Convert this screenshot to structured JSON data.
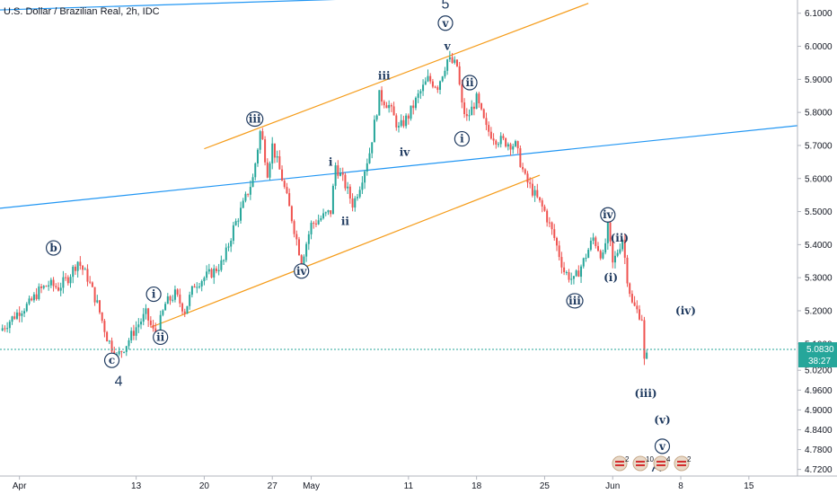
{
  "chart_data": {
    "type": "candlestick",
    "title": "U.S. Dollar / Brazilian Real, 2h, IDC",
    "x_tick_labels": [
      "Apr",
      "13",
      "20",
      "27",
      "May",
      "11",
      "18",
      "25",
      "Jun",
      "8",
      "15"
    ],
    "x_tick_days": [
      0,
      12,
      19,
      26,
      30,
      40,
      47,
      54,
      61,
      68,
      75
    ],
    "y_ticks": [
      4.72,
      4.78,
      4.84,
      4.9,
      4.96,
      5.02,
      5.1,
      5.2,
      5.3,
      5.4,
      5.5,
      5.6,
      5.7,
      5.8,
      5.9,
      6.0,
      6.1
    ],
    "y_tick_labels": [
      "4.7200",
      "4.7800",
      "4.8400",
      "4.9000",
      "4.9600",
      "5.0200",
      "5.1000",
      "5.2000",
      "5.3000",
      "5.4000",
      "5.5000",
      "5.6000",
      "5.7000",
      "5.8000",
      "5.9000",
      "6.0000",
      "6.1000"
    ],
    "y_range": [
      4.7,
      6.14
    ],
    "x_range_days": [
      -2,
      80
    ],
    "last_price": "5.0830",
    "last_price_value": 5.083,
    "countdown": "38:27",
    "colors": {
      "up": "#26a69a",
      "down": "#ef5350",
      "trend_blue": "#2196f3",
      "channel_orange": "#f59c1a",
      "label": "#1f3a5f",
      "price_line": "#26a69a"
    },
    "price_path": [
      [
        -2.0,
        5.14
      ],
      [
        -1.0,
        5.17
      ],
      [
        0.0,
        5.2
      ],
      [
        1.0,
        5.22
      ],
      [
        2.0,
        5.26
      ],
      [
        3.0,
        5.28
      ],
      [
        4.0,
        5.27
      ],
      [
        5.0,
        5.3
      ],
      [
        6.0,
        5.35
      ],
      [
        7.0,
        5.3
      ],
      [
        8.0,
        5.22
      ],
      [
        9.0,
        5.12
      ],
      [
        10.0,
        5.06
      ],
      [
        11.0,
        5.1
      ],
      [
        12.0,
        5.15
      ],
      [
        13.0,
        5.19
      ],
      [
        14.0,
        5.12
      ],
      [
        15.0,
        5.22
      ],
      [
        16.0,
        5.25
      ],
      [
        17.0,
        5.2
      ],
      [
        18.0,
        5.28
      ],
      [
        19.0,
        5.3
      ],
      [
        20.0,
        5.32
      ],
      [
        21.0,
        5.35
      ],
      [
        22.0,
        5.45
      ],
      [
        23.0,
        5.52
      ],
      [
        24.0,
        5.6
      ],
      [
        24.8,
        5.75
      ],
      [
        25.5,
        5.62
      ],
      [
        26.0,
        5.7
      ],
      [
        27.0,
        5.6
      ],
      [
        28.0,
        5.48
      ],
      [
        29.0,
        5.35
      ],
      [
        30.0,
        5.46
      ],
      [
        31.0,
        5.48
      ],
      [
        32.0,
        5.5
      ],
      [
        32.5,
        5.64
      ],
      [
        33.5,
        5.58
      ],
      [
        34.3,
        5.52
      ],
      [
        35.0,
        5.58
      ],
      [
        36.0,
        5.68
      ],
      [
        37.0,
        5.85
      ],
      [
        38.0,
        5.82
      ],
      [
        39.0,
        5.75
      ],
      [
        40.0,
        5.79
      ],
      [
        41.0,
        5.85
      ],
      [
        42.0,
        5.9
      ],
      [
        43.0,
        5.88
      ],
      [
        44.0,
        5.96
      ],
      [
        45.0,
        5.94
      ],
      [
        45.5,
        5.82
      ],
      [
        46.0,
        5.78
      ],
      [
        47.0,
        5.84
      ],
      [
        48.0,
        5.75
      ],
      [
        49.0,
        5.72
      ],
      [
        50.0,
        5.71
      ],
      [
        51.0,
        5.7
      ],
      [
        52.0,
        5.6
      ],
      [
        53.0,
        5.55
      ],
      [
        54.0,
        5.5
      ],
      [
        55.0,
        5.42
      ],
      [
        56.0,
        5.32
      ],
      [
        57.0,
        5.29
      ],
      [
        58.0,
        5.35
      ],
      [
        59.0,
        5.42
      ],
      [
        60.0,
        5.36
      ],
      [
        60.5,
        5.45
      ],
      [
        61.0,
        5.34
      ],
      [
        62.0,
        5.42
      ],
      [
        62.5,
        5.3
      ],
      [
        63.0,
        5.22
      ],
      [
        64.0,
        5.18
      ],
      [
        64.3,
        5.02
      ],
      [
        64.6,
        5.08
      ]
    ],
    "trendlines": [
      {
        "name": "blue-upper",
        "color": "#2196f3",
        "p1": [
          -2,
          6.11
        ],
        "p2": [
          63.5,
          6.17
        ]
      },
      {
        "name": "blue-lower",
        "color": "#2196f3",
        "p1": [
          -2,
          5.51
        ],
        "p2": [
          80,
          5.76
        ]
      },
      {
        "name": "orange-upper",
        "color": "#f59c1a",
        "p1": [
          19,
          5.69
        ],
        "p2": [
          58.5,
          6.13
        ]
      },
      {
        "name": "orange-lower",
        "color": "#f59c1a",
        "p1": [
          13.5,
          5.15
        ],
        "p2": [
          53.5,
          5.61
        ]
      }
    ],
    "wave_labels": [
      {
        "text": "b",
        "x": 3.5,
        "y": 5.39,
        "circled": true
      },
      {
        "text": "c",
        "x": 9.5,
        "y": 5.05,
        "circled": true
      },
      {
        "text": "4",
        "x": 10.2,
        "y": 4.99,
        "circled": false,
        "big": true
      },
      {
        "text": "i",
        "x": 13.8,
        "y": 5.25,
        "circled": true
      },
      {
        "text": "ii",
        "x": 14.5,
        "y": 5.12,
        "circled": true
      },
      {
        "text": "iii",
        "x": 24.2,
        "y": 5.78,
        "circled": true
      },
      {
        "text": "iv",
        "x": 29.0,
        "y": 5.32,
        "circled": true
      },
      {
        "text": "i",
        "x": 32.0,
        "y": 5.65,
        "circled": false
      },
      {
        "text": "ii",
        "x": 33.5,
        "y": 5.47,
        "circled": false
      },
      {
        "text": "iii",
        "x": 37.5,
        "y": 5.91,
        "circled": false
      },
      {
        "text": "iv",
        "x": 39.6,
        "y": 5.68,
        "circled": false
      },
      {
        "text": "5",
        "x": 43.8,
        "y": 6.13,
        "circled": false,
        "big": true
      },
      {
        "text": "v",
        "x": 43.8,
        "y": 6.07,
        "circled": true
      },
      {
        "text": "v",
        "x": 44.0,
        "y": 6.0,
        "circled": false
      },
      {
        "text": "ii",
        "x": 46.3,
        "y": 5.89,
        "circled": true
      },
      {
        "text": "i",
        "x": 45.5,
        "y": 5.72,
        "circled": true
      },
      {
        "text": "iii",
        "x": 57.1,
        "y": 5.23,
        "circled": true
      },
      {
        "text": "iv",
        "x": 60.5,
        "y": 5.49,
        "circled": true
      },
      {
        "text": "(ii)",
        "x": 61.7,
        "y": 5.42,
        "circled": false
      },
      {
        "text": "(i)",
        "x": 60.8,
        "y": 5.3,
        "circled": false
      },
      {
        "text": "(iv)",
        "x": 68.5,
        "y": 5.2,
        "circled": false
      },
      {
        "text": "(iii)",
        "x": 64.4,
        "y": 4.95,
        "circled": false
      },
      {
        "text": "(v)",
        "x": 66.1,
        "y": 4.87,
        "circled": false
      },
      {
        "text": "v",
        "x": 66.1,
        "y": 4.79,
        "circled": true
      },
      {
        "text": "A",
        "x": 65.5,
        "y": 4.73,
        "circled": false,
        "big": true
      }
    ]
  },
  "legend_badges": [
    {
      "count": "2"
    },
    {
      "count": "10"
    },
    {
      "count": "4"
    },
    {
      "count": "2"
    }
  ]
}
